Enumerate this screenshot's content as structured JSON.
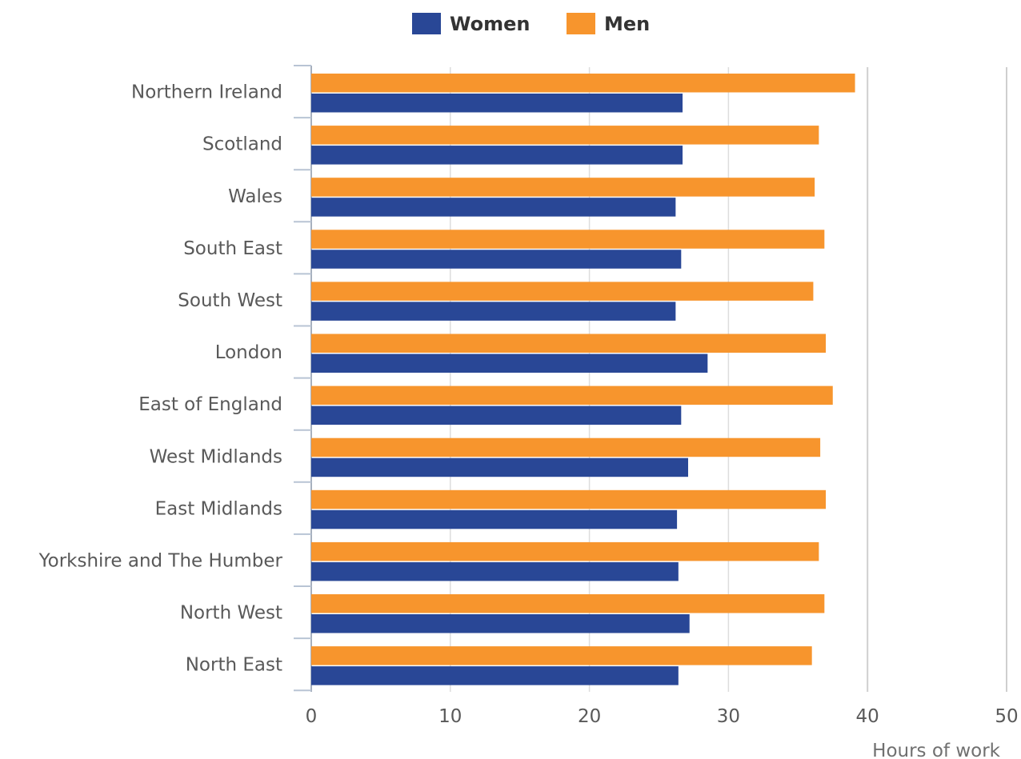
{
  "chart_data": {
    "type": "bar",
    "orientation": "horizontal",
    "categories": [
      "Northern Ireland",
      "Scotland",
      "Wales",
      "South East",
      "South West",
      "London",
      "East of England",
      "West Midlands",
      "East Midlands",
      "Yorkshire and The Humber",
      "North West",
      "North East"
    ],
    "series": [
      {
        "name": "Men",
        "color": "#F7952D",
        "values": [
          39.1,
          36.5,
          36.2,
          36.9,
          36.1,
          37.0,
          37.5,
          36.6,
          37.0,
          36.5,
          36.9,
          36.0
        ]
      },
      {
        "name": "Women",
        "color": "#294796",
        "values": [
          26.7,
          26.7,
          26.2,
          26.6,
          26.2,
          28.5,
          26.6,
          27.1,
          26.3,
          26.4,
          27.2,
          26.4
        ]
      }
    ],
    "legend": {
      "position": "top-center",
      "items": [
        {
          "name": "Women",
          "color": "#294796"
        },
        {
          "name": "Men",
          "color": "#F7952D"
        }
      ]
    },
    "xlabel": "Hours of work",
    "xlim": [
      0,
      50
    ],
    "xticks": [
      "0",
      "10",
      "20",
      "30",
      "40",
      "50"
    ],
    "grid": true
  }
}
